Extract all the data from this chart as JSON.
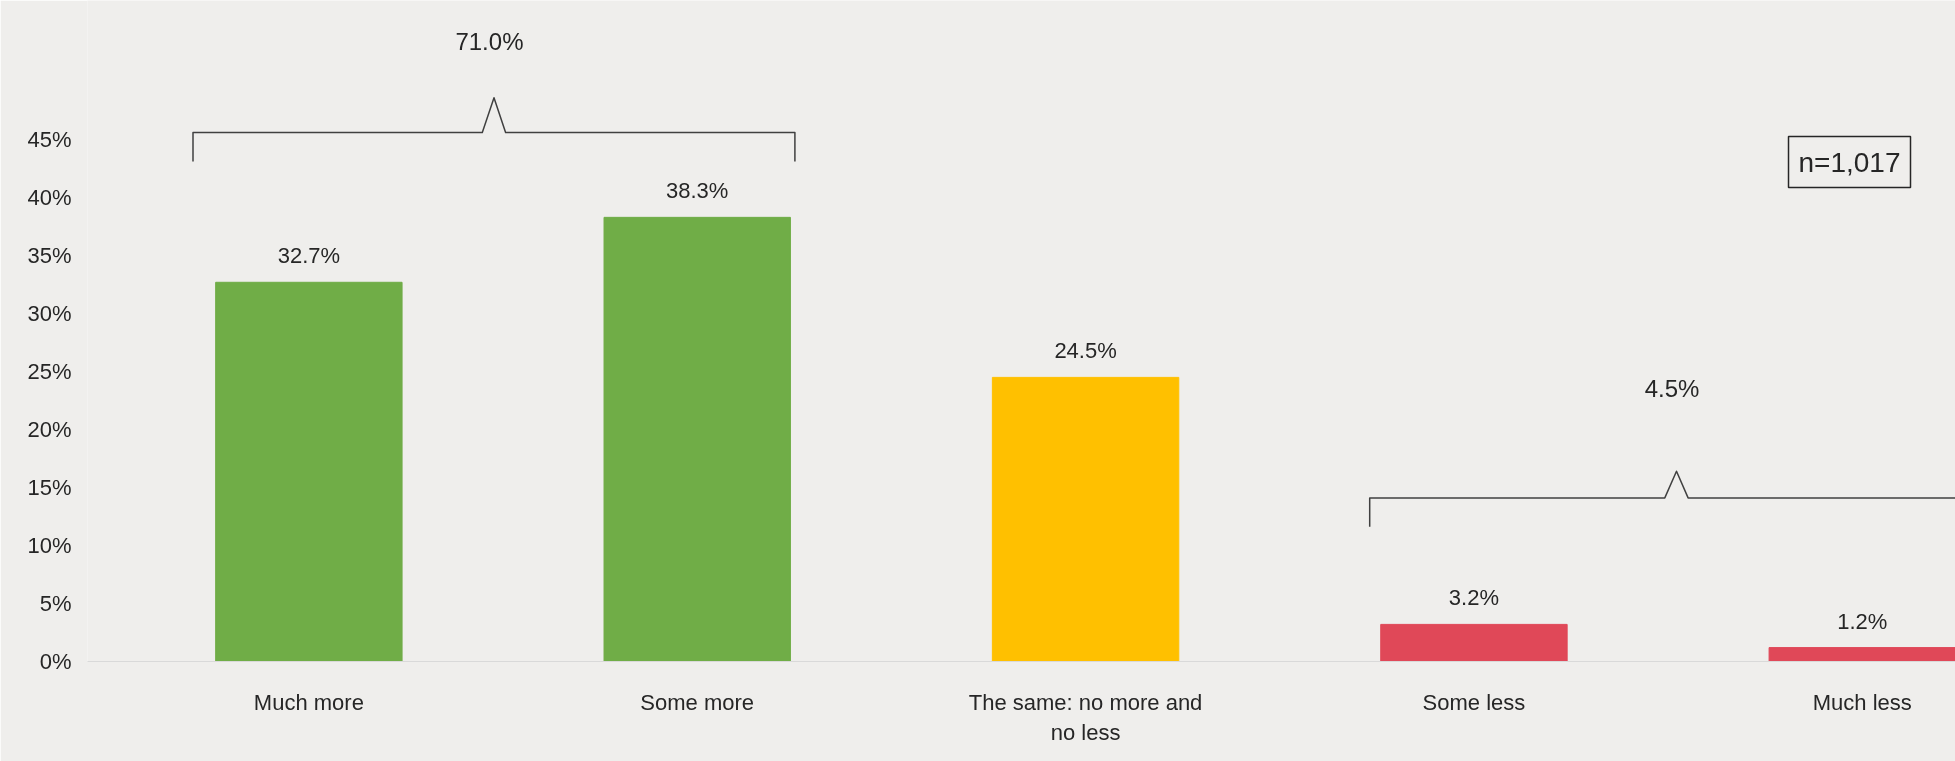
{
  "chart_data": {
    "type": "bar",
    "categories": [
      "Much more",
      "Some more",
      "The same: no more and no less",
      "Some less",
      "Much less"
    ],
    "values": [
      32.7,
      38.3,
      24.5,
      3.2,
      1.2
    ],
    "colors": [
      "#70ad47",
      "#70ad47",
      "#ffc000",
      "#e04858",
      "#e04858"
    ],
    "value_labels": [
      "32.7%",
      "38.3%",
      "24.5%",
      "3.2%",
      "1.2%"
    ],
    "ylim": [
      0,
      57
    ],
    "yticks": [
      {
        "value": 0,
        "label": "0%"
      },
      {
        "value": 5,
        "label": "5%"
      },
      {
        "value": 10,
        "label": "10%"
      },
      {
        "value": 15,
        "label": "15%"
      },
      {
        "value": 20,
        "label": "20%"
      },
      {
        "value": 25,
        "label": "25%"
      },
      {
        "value": 30,
        "label": "30%"
      },
      {
        "value": 35,
        "label": "35%"
      },
      {
        "value": 40,
        "label": "40%"
      },
      {
        "value": 45,
        "label": "45%"
      }
    ],
    "grid": false,
    "annotations": [
      "71.0%",
      "4.5%",
      "n=1,017"
    ]
  }
}
